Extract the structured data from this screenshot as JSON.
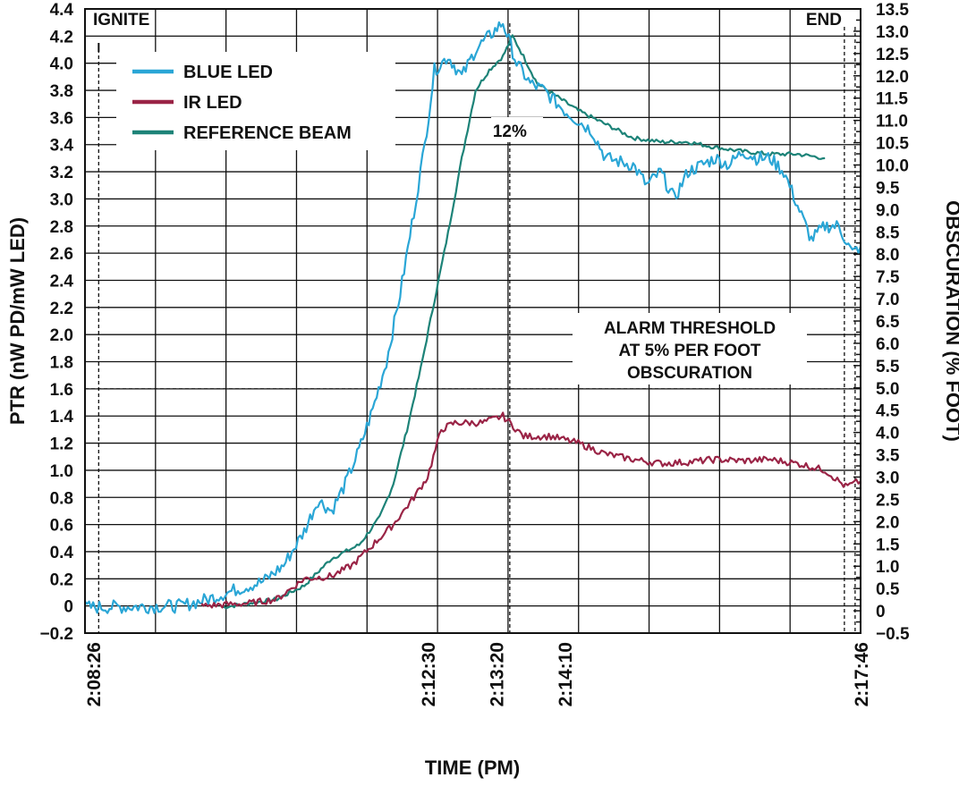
{
  "chart_data": {
    "type": "line",
    "title": "",
    "xlabel": "TIME (PM)",
    "ylabel_left": "PTR (nW PD/mW LED)",
    "ylabel_right": "OBSCURATION (% FOOT)",
    "x_ticks": [
      "2:08:26",
      "2:12:30",
      "2:13:20",
      "2:14:10",
      "2:17:46"
    ],
    "x_range_seconds_after_2_pm": [
      500,
      1066
    ],
    "ylim_left": [
      -0.2,
      4.4
    ],
    "ylim_right": [
      -0.5,
      13.5
    ],
    "left_ticks": [
      "−0.2",
      "0",
      "0.2",
      "0.4",
      "0.6",
      "0.8",
      "1.0",
      "1.2",
      "1.4",
      "1.6",
      "1.8",
      "2.0",
      "2.2",
      "2.4",
      "2.6",
      "2.8",
      "3.0",
      "3.2",
      "3.4",
      "3.6",
      "3.8",
      "4.0",
      "4.2",
      "4.4"
    ],
    "right_ticks": [
      "−0.5",
      "0",
      "0.5",
      "1.0",
      "1.5",
      "2.0",
      "2.5",
      "3.0",
      "3.5",
      "4.0",
      "4.5",
      "5.0",
      "5.5",
      "6.0",
      "6.5",
      "7.0",
      "7.5",
      "8.0",
      "8.5",
      "9.0",
      "9.5",
      "10.0",
      "10.5",
      "11.0",
      "11.5",
      "12.0",
      "12.5",
      "13.0",
      "13.5"
    ],
    "grid": true,
    "legend_position": "top-left",
    "series": [
      {
        "name": "BLUE LED",
        "axis": "left",
        "color": "#2aa6d6",
        "points": [
          [
            500,
            -0.01
          ],
          [
            570,
            0.0
          ],
          [
            590,
            0.05
          ],
          [
            610,
            0.12
          ],
          [
            630,
            0.18
          ],
          [
            645,
            0.3
          ],
          [
            660,
            0.55
          ],
          [
            670,
            0.78
          ],
          [
            680,
            0.7
          ],
          [
            690,
            0.9
          ],
          [
            700,
            1.15
          ],
          [
            710,
            1.45
          ],
          [
            720,
            1.8
          ],
          [
            730,
            2.3
          ],
          [
            740,
            2.9
          ],
          [
            748,
            3.4
          ],
          [
            755,
            3.95
          ],
          [
            765,
            4.05
          ],
          [
            775,
            3.9
          ],
          [
            785,
            4.1
          ],
          [
            795,
            4.2
          ],
          [
            805,
            4.3
          ],
          [
            815,
            4.0
          ],
          [
            825,
            3.85
          ],
          [
            835,
            3.8
          ],
          [
            850,
            3.65
          ],
          [
            870,
            3.5
          ],
          [
            880,
            3.3
          ],
          [
            900,
            3.25
          ],
          [
            910,
            3.1
          ],
          [
            920,
            3.2
          ],
          [
            930,
            3.0
          ],
          [
            940,
            3.2
          ],
          [
            950,
            3.25
          ],
          [
            960,
            3.3
          ],
          [
            970,
            3.25
          ],
          [
            980,
            3.35
          ],
          [
            990,
            3.3
          ],
          [
            1000,
            3.3
          ],
          [
            1010,
            3.2
          ],
          [
            1020,
            2.95
          ],
          [
            1030,
            2.7
          ],
          [
            1040,
            2.8
          ],
          [
            1050,
            2.8
          ],
          [
            1060,
            2.6
          ],
          [
            1066,
            2.65
          ]
        ]
      },
      {
        "name": "IR LED",
        "axis": "left",
        "color": "#9a2446",
        "points": [
          [
            585,
            0.0
          ],
          [
            620,
            0.02
          ],
          [
            640,
            0.05
          ],
          [
            660,
            0.2
          ],
          [
            680,
            0.22
          ],
          [
            695,
            0.3
          ],
          [
            710,
            0.45
          ],
          [
            725,
            0.6
          ],
          [
            740,
            0.8
          ],
          [
            750,
            0.95
          ],
          [
            760,
            1.3
          ],
          [
            770,
            1.35
          ],
          [
            790,
            1.35
          ],
          [
            805,
            1.4
          ],
          [
            820,
            1.25
          ],
          [
            840,
            1.25
          ],
          [
            860,
            1.2
          ],
          [
            880,
            1.12
          ],
          [
            900,
            1.08
          ],
          [
            920,
            1.05
          ],
          [
            940,
            1.06
          ],
          [
            960,
            1.08
          ],
          [
            980,
            1.07
          ],
          [
            1000,
            1.08
          ],
          [
            1020,
            1.05
          ],
          [
            1040,
            1.0
          ],
          [
            1055,
            0.88
          ],
          [
            1066,
            0.92
          ]
        ]
      },
      {
        "name": "REFERENCE BEAM",
        "axis": "left",
        "color": "#1d8378",
        "points": [
          [
            600,
            -0.01
          ],
          [
            640,
            0.05
          ],
          [
            660,
            0.15
          ],
          [
            680,
            0.35
          ],
          [
            700,
            0.45
          ],
          [
            715,
            0.65
          ],
          [
            725,
            0.9
          ],
          [
            735,
            1.3
          ],
          [
            745,
            1.75
          ],
          [
            755,
            2.25
          ],
          [
            765,
            2.75
          ],
          [
            775,
            3.3
          ],
          [
            785,
            3.8
          ],
          [
            795,
            3.95
          ],
          [
            805,
            4.05
          ],
          [
            812,
            4.2
          ],
          [
            820,
            4.05
          ],
          [
            830,
            3.85
          ],
          [
            845,
            3.75
          ],
          [
            860,
            3.65
          ],
          [
            880,
            3.55
          ],
          [
            900,
            3.45
          ],
          [
            920,
            3.42
          ],
          [
            940,
            3.42
          ],
          [
            960,
            3.38
          ],
          [
            980,
            3.35
          ],
          [
            1000,
            3.33
          ],
          [
            1020,
            3.33
          ],
          [
            1040,
            3.3
          ]
        ]
      }
    ],
    "annotations": {
      "ignite": "IGNITE",
      "end": "END",
      "peak": "12%",
      "alarm_line1": "ALARM THRESHOLD",
      "alarm_line2": "AT 5% PER FOOT",
      "alarm_line3": "OBSCURATION"
    },
    "alarm_threshold_ptr": 1.6,
    "peak_marker_x": 810,
    "ignite_marker_x": 510,
    "end_marker_x": 1062
  }
}
